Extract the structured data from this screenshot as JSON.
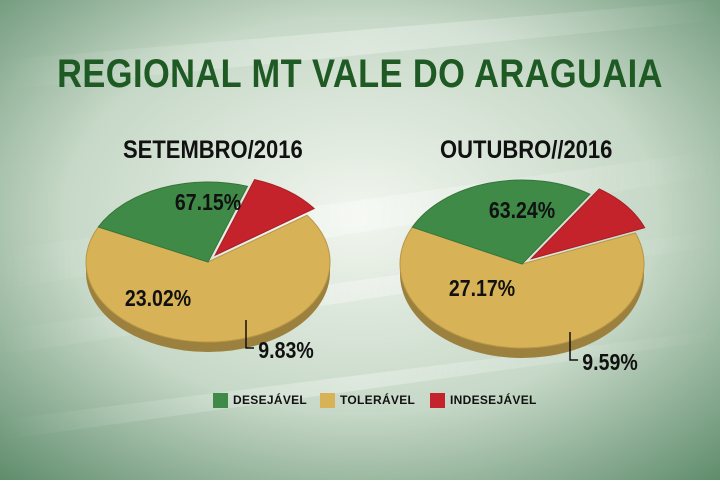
{
  "title": "REGIONAL MT VALE DO ARAGUAIA",
  "colors": {
    "desejavel": "#3f8a47",
    "toleravel": "#d8b256",
    "indesejavel": "#c4232c",
    "title": "#1f5a25"
  },
  "legend": [
    {
      "label": "DESEJÁVEL",
      "color": "#3f8a47"
    },
    {
      "label": "TOLERÁVEL",
      "color": "#d8b256"
    },
    {
      "label": "INDESEJÁVEL",
      "color": "#c4232c"
    }
  ],
  "chart_data": [
    {
      "type": "pie",
      "title": "SETEMBRO/2016",
      "slices": [
        {
          "label": "TOLERÁVEL",
          "value": 67.15,
          "display": "67.15%"
        },
        {
          "label": "DESEJÁVEL",
          "value": 23.02,
          "display": "23.02%"
        },
        {
          "label": "INDESEJÁVEL",
          "value": 9.83,
          "display": "9.83%"
        }
      ]
    },
    {
      "type": "pie",
      "title": "OUTUBRO//2016",
      "slices": [
        {
          "label": "TOLERÁVEL",
          "value": 63.24,
          "display": "63.24%"
        },
        {
          "label": "DESEJÁVEL",
          "value": 27.17,
          "display": "27.17%"
        },
        {
          "label": "INDESEJÁVEL",
          "value": 9.59,
          "display": "9.59%"
        }
      ]
    }
  ]
}
